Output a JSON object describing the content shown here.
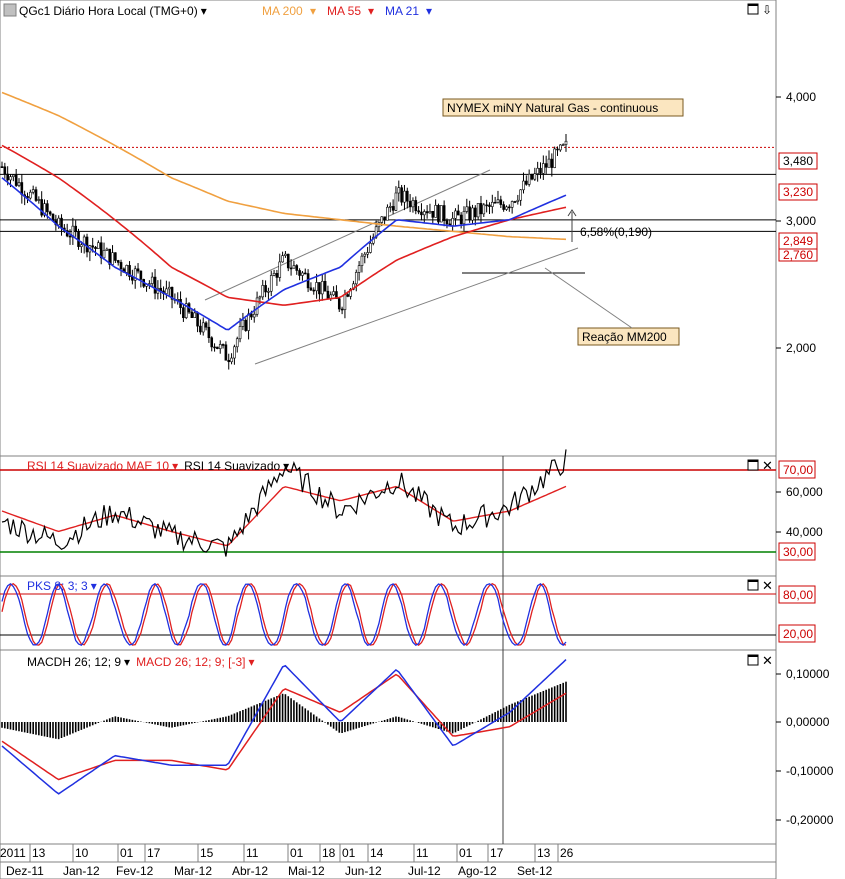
{
  "main_panel": {
    "symbol": "QGc1",
    "title_rest": "Diário Hora Local (TMG+0)",
    "indicators": [
      {
        "label": "MA 200",
        "color": "#f0a040"
      },
      {
        "label": "MA 55",
        "color": "#e02020"
      },
      {
        "label": "MA 21",
        "color": "#2030e0"
      }
    ],
    "annotation_box": "NYMEX miNY Natural Gas - continuous",
    "reaction_label": "Reação MM200",
    "pct_label": "6,58%(0,190)",
    "price_ticks": [
      "4,000",
      "3,000",
      "2,000"
    ],
    "price_badges": [
      {
        "text": "3,480",
        "color": "#cc0000"
      },
      {
        "text": "3,230",
        "color": "#cc0000"
      },
      {
        "text": "2,849",
        "color": "#cc0000"
      },
      {
        "text": "2,760",
        "color": "#cc0000"
      }
    ]
  },
  "rsi_panel": {
    "title_red": "RSI 14 Suavizado MAE 10",
    "title_black": "RSI 14 Suavizado",
    "ticks": [
      "60,000",
      "40,000"
    ],
    "badges": [
      {
        "text": "70,00",
        "color": "#cc0000"
      },
      {
        "text": "30,00",
        "color": "#008000"
      }
    ]
  },
  "pks_panel": {
    "title": "PKS 8; 3; 3",
    "badges": [
      {
        "text": "80,00",
        "color": "#cc0000"
      },
      {
        "text": "20,00",
        "color": "#cc0000"
      }
    ]
  },
  "macd_panel": {
    "title_black": "MACDH 26; 12; 9",
    "title_red": "MACD 26; 12; 9; [-3]",
    "ticks": [
      "0,10000",
      "0,00000",
      "-0,10000",
      "-0,20000"
    ]
  },
  "x_axis": {
    "days": [
      "2011",
      "13",
      "10",
      "01",
      "17",
      "15",
      "11",
      "01",
      "18",
      "01",
      "14",
      "11",
      "01",
      "17",
      "13",
      "26"
    ],
    "months": [
      "Dez-11",
      "Jan-12",
      "Fev-12",
      "Mar-12",
      "Abr-12",
      "Mai-12",
      "Jun-12",
      "Jul-12",
      "Ago-12",
      "Set-12"
    ]
  },
  "chart_data": {
    "type": "line",
    "title": "QGc1 Diário Hora Local (TMG+0)",
    "x": [
      "Dez-11",
      "Jan-12",
      "Fev-12",
      "Mar-12",
      "Abr-12",
      "Mai-12",
      "Jun-12",
      "Jul-12",
      "Ago-12",
      "Set-12",
      "26"
    ],
    "series": [
      {
        "name": "QGc1",
        "values": [
          3.3,
          2.8,
          2.55,
          2.3,
          1.95,
          2.55,
          2.25,
          3.05,
          2.85,
          3.0,
          3.48
        ]
      },
      {
        "name": "MA 200",
        "values": [
          4.05,
          3.8,
          3.5,
          3.2,
          3.0,
          2.9,
          2.85,
          2.8,
          2.76,
          2.72,
          2.7
        ]
      },
      {
        "name": "MA 55",
        "values": [
          3.5,
          3.2,
          2.85,
          2.5,
          2.3,
          2.25,
          2.3,
          2.55,
          2.72,
          2.85,
          2.95
        ]
      },
      {
        "name": "MA 21",
        "values": [
          3.2,
          2.8,
          2.5,
          2.3,
          2.1,
          2.35,
          2.5,
          2.85,
          2.8,
          2.85,
          3.05
        ]
      }
    ],
    "ylim": [
      1.7,
      4.4
    ],
    "log_scale": true,
    "horizontal_levels": [
      3.48,
      3.23,
      2.849,
      2.76
    ],
    "rsi": {
      "rsi14": [
        45,
        35,
        50,
        38,
        32,
        72,
        50,
        65,
        42,
        52,
        75
      ],
      "mae10": [
        50,
        40,
        48,
        40,
        33,
        62,
        55,
        62,
        45,
        50,
        62
      ],
      "levels": [
        70,
        30
      ]
    },
    "pks": {
      "levels": [
        80,
        20
      ]
    },
    "macd": {
      "macd": [
        -0.05,
        -0.15,
        -0.07,
        -0.09,
        -0.09,
        0.12,
        0.0,
        0.11,
        -0.05,
        0.02,
        0.13
      ],
      "signal": [
        -0.04,
        -0.12,
        -0.08,
        -0.08,
        -0.1,
        0.07,
        0.02,
        0.1,
        -0.03,
        -0.01,
        0.06
      ]
    }
  }
}
